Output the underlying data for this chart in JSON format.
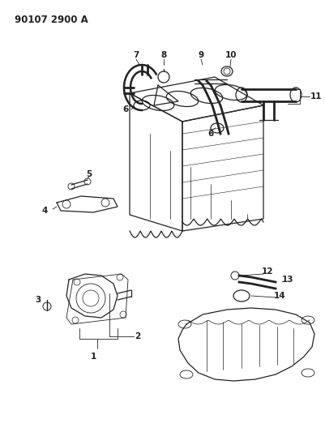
{
  "title": "90107 2900 A",
  "bg_color": "#ffffff",
  "line_color": "#222222",
  "fig_width": 4.02,
  "fig_height": 5.33,
  "dpi": 100
}
